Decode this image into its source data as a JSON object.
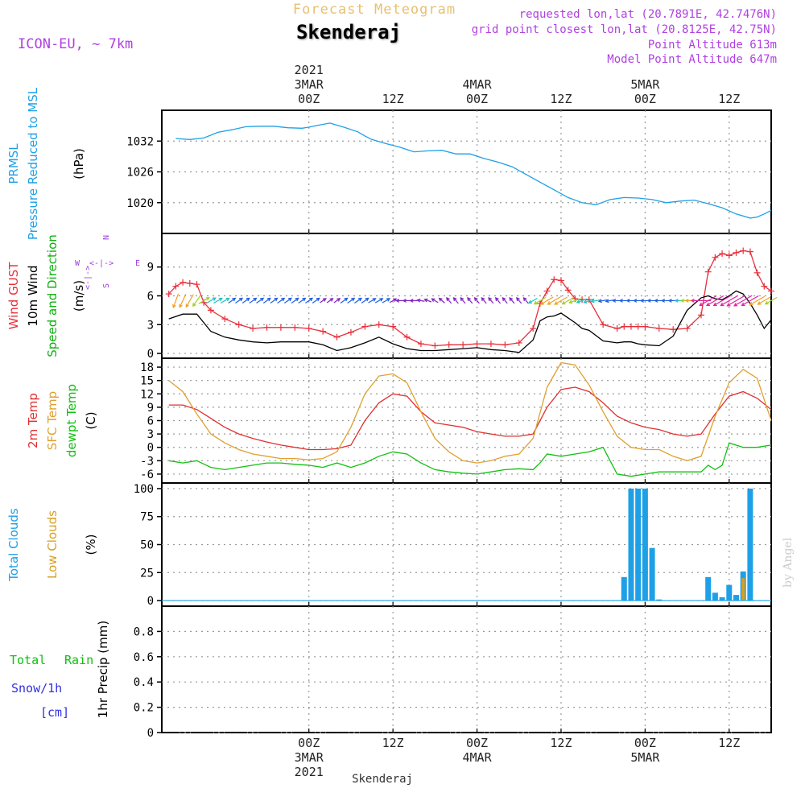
{
  "header": {
    "title": "Forecast Meteogram",
    "location": "Skenderaj",
    "model": "ICON-EU, ~ 7km",
    "requested": "requested lon,lat (20.7891E, 42.7476N)",
    "grid_point": "grid point closest lon,lat (20.8125E, 42.75N)",
    "point_altitude": "Point Altitude 613m",
    "model_altitude": "Model Point Altitude 647m",
    "footer_location": "Skenderaj",
    "watermark": "by Angel"
  },
  "time_axis": {
    "top_labels": [
      {
        "line1": "2021",
        "line2": "3MAR",
        "line3": "00Z",
        "hour": 0
      },
      {
        "line1": "",
        "line2": "",
        "line3": "12Z",
        "hour": 12
      },
      {
        "line1": "",
        "line2": "4MAR",
        "line3": "00Z",
        "hour": 24
      },
      {
        "line1": "",
        "line2": "",
        "line3": "12Z",
        "hour": 36
      },
      {
        "line1": "",
        "line2": "5MAR",
        "line3": "00Z",
        "hour": 48
      },
      {
        "line1": "",
        "line2": "",
        "line3": "12Z",
        "hour": 60
      }
    ],
    "bottom_labels": [
      {
        "line1": "00Z",
        "line2": "3MAR",
        "line3": "2021",
        "hour": 0
      },
      {
        "line1": "12Z",
        "line2": "",
        "line3": "",
        "hour": 12
      },
      {
        "line1": "00Z",
        "line2": "4MAR",
        "line3": "",
        "hour": 24
      },
      {
        "line1": "12Z",
        "line2": "",
        "line3": "",
        "hour": 36
      },
      {
        "line1": "00Z",
        "line2": "5MAR",
        "line3": "",
        "hour": 48
      },
      {
        "line1": "12Z",
        "line2": "",
        "line3": "",
        "hour": 60
      }
    ]
  },
  "colors": {
    "pressure": "#1ea0e6",
    "gust": "#e8303c",
    "wind10m": "#000000",
    "direction_label": "#10b010",
    "temp2m": "#e03030",
    "sfc_temp": "#e0a030",
    "dewpt": "#10c010",
    "total_clouds": "#1ea0e6",
    "low_clouds": "#d8a020",
    "rain": "#10c010",
    "snow": "#3030e0",
    "compass": "#a040e0",
    "header_purple": "#b040e0",
    "title_gold": "#e8c070"
  },
  "chart_data": [
    {
      "type": "line",
      "panel": "pressure",
      "ylabel": [
        "PRMSL",
        "Pressure Reduced to MSL",
        "(hPa)"
      ],
      "ylim": [
        1014,
        1038
      ],
      "yticks": [
        1020,
        1026,
        1032
      ],
      "series": [
        {
          "name": "PRMSL",
          "x": [
            -19,
            -17,
            -15,
            -13,
            -11,
            -9,
            -7,
            -5,
            -3,
            -1,
            0,
            1,
            3,
            5,
            7,
            8,
            9,
            11,
            13,
            15,
            17,
            19,
            21,
            23,
            25,
            27,
            29,
            31,
            33,
            35,
            37,
            39,
            41,
            43,
            45,
            47,
            49,
            51,
            53,
            55,
            57,
            59,
            61,
            63,
            64,
            65,
            66
          ],
          "values": [
            1032.5,
            1032.3,
            1032.6,
            1033.7,
            1034.2,
            1034.8,
            1034.9,
            1034.9,
            1034.6,
            1034.5,
            1034.7,
            1035.0,
            1035.5,
            1034.7,
            1033.8,
            1033.0,
            1032.3,
            1031.5,
            1030.8,
            1029.9,
            1030.1,
            1030.2,
            1029.5,
            1029.5,
            1028.6,
            1027.9,
            1027.0,
            1025.5,
            1024.0,
            1022.5,
            1021.0,
            1020.0,
            1019.6,
            1020.6,
            1021.0,
            1020.9,
            1020.6,
            1020.0,
            1020.3,
            1020.5,
            1019.8,
            1019.0,
            1017.8,
            1017.0,
            1017.2,
            1017.8,
            1018.5
          ]
        }
      ]
    },
    {
      "type": "line",
      "panel": "wind",
      "ylabel": [
        "Wind GUST",
        "10m Wind",
        "Speed and Direction",
        "(m/s)"
      ],
      "ylim": [
        -0.5,
        12.5
      ],
      "yticks": [
        0,
        3,
        6,
        9
      ],
      "compass": [
        "N",
        "S",
        "W",
        "E"
      ],
      "series": [
        {
          "name": "Wind GUST",
          "x": [
            -20,
            -19,
            -18,
            -17,
            -16,
            -15,
            -14,
            -12,
            -10,
            -8,
            -6,
            -4,
            -2,
            0,
            2,
            4,
            6,
            8,
            10,
            12,
            14,
            16,
            18,
            20,
            22,
            24,
            26,
            28,
            30,
            32,
            33,
            34,
            35,
            36,
            37,
            38,
            39,
            40,
            42,
            44,
            45,
            46,
            47,
            48,
            50,
            52,
            54,
            56,
            57,
            58,
            59,
            60,
            61,
            62,
            63,
            64,
            65,
            66
          ],
          "values": [
            6.2,
            7.0,
            7.4,
            7.3,
            7.2,
            5.3,
            4.5,
            3.6,
            3.0,
            2.6,
            2.7,
            2.7,
            2.7,
            2.6,
            2.3,
            1.7,
            2.2,
            2.8,
            3.0,
            2.8,
            1.7,
            1.0,
            0.8,
            0.9,
            0.9,
            1.0,
            1.0,
            0.9,
            1.1,
            2.6,
            5.2,
            6.5,
            7.7,
            7.6,
            6.6,
            5.7,
            5.6,
            5.6,
            3.0,
            2.6,
            2.8,
            2.8,
            2.8,
            2.8,
            2.6,
            2.5,
            2.6,
            4.0,
            8.5,
            10.0,
            10.4,
            10.2,
            10.5,
            10.7,
            10.6,
            8.4,
            7.0,
            6.5
          ]
        },
        {
          "name": "10m Wind",
          "x": [
            -20,
            -18,
            -16,
            -15,
            -14,
            -12,
            -10,
            -8,
            -6,
            -4,
            -2,
            0,
            2,
            4,
            6,
            8,
            10,
            12,
            14,
            16,
            18,
            20,
            22,
            24,
            26,
            28,
            30,
            32,
            33,
            34,
            35,
            36,
            37,
            38,
            39,
            40,
            42,
            44,
            45,
            46,
            47,
            48,
            50,
            52,
            54,
            56,
            57,
            58,
            59,
            60,
            61,
            62,
            63,
            64,
            65,
            66
          ],
          "values": [
            3.6,
            4.1,
            4.1,
            3.2,
            2.3,
            1.7,
            1.4,
            1.2,
            1.1,
            1.2,
            1.2,
            1.2,
            0.9,
            0.3,
            0.6,
            1.1,
            1.7,
            1.0,
            0.5,
            0.3,
            0.3,
            0.4,
            0.5,
            0.6,
            0.4,
            0.3,
            0.1,
            1.4,
            3.4,
            3.8,
            3.9,
            4.2,
            3.7,
            3.2,
            2.6,
            2.4,
            1.3,
            1.1,
            1.2,
            1.2,
            1.0,
            0.9,
            0.8,
            1.8,
            4.5,
            5.8,
            6.0,
            5.7,
            5.6,
            6.0,
            6.5,
            6.2,
            5.2,
            4.0,
            2.6,
            3.5
          ]
        }
      ]
    },
    {
      "type": "line",
      "panel": "temperature",
      "ylabel": [
        "2m Temp",
        "SFC Temp",
        "dewpt Temp",
        "(C)"
      ],
      "ylim": [
        -8,
        20
      ],
      "yticks": [
        -6,
        -3,
        0,
        3,
        6,
        9,
        12,
        15,
        18
      ],
      "series": [
        {
          "name": "2m Temp",
          "x": [
            -20,
            -18,
            -16,
            -14,
            -12,
            -10,
            -8,
            -6,
            -4,
            -2,
            0,
            2,
            4,
            6,
            8,
            10,
            12,
            14,
            16,
            18,
            20,
            22,
            24,
            26,
            28,
            30,
            32,
            34,
            36,
            38,
            40,
            42,
            44,
            46,
            48,
            50,
            52,
            54,
            56,
            58,
            60,
            62,
            64,
            66
          ],
          "values": [
            9.5,
            9.5,
            8.5,
            6.5,
            4.5,
            3.0,
            2.0,
            1.2,
            0.5,
            0.0,
            -0.5,
            -0.5,
            -0.3,
            0.5,
            6.0,
            10.0,
            12.0,
            11.5,
            8.0,
            5.5,
            5.0,
            4.5,
            3.5,
            3.0,
            2.5,
            2.5,
            3.0,
            9.0,
            13.0,
            13.5,
            12.5,
            10.0,
            7.0,
            5.5,
            4.5,
            4.0,
            3.0,
            2.5,
            3.0,
            7.5,
            11.5,
            12.5,
            11.0,
            8.5
          ]
        },
        {
          "name": "SFC Temp",
          "x": [
            -20,
            -18,
            -16,
            -14,
            -12,
            -10,
            -8,
            -6,
            -4,
            -2,
            0,
            2,
            4,
            6,
            8,
            10,
            12,
            14,
            16,
            18,
            20,
            22,
            24,
            26,
            28,
            30,
            32,
            34,
            36,
            38,
            40,
            42,
            44,
            46,
            48,
            50,
            52,
            54,
            56,
            58,
            60,
            62,
            64,
            66
          ],
          "values": [
            15.0,
            12.5,
            7.5,
            3.0,
            1.0,
            -0.5,
            -1.5,
            -2.0,
            -2.5,
            -2.5,
            -2.8,
            -2.5,
            -1.0,
            4.5,
            12.0,
            16.0,
            16.5,
            14.5,
            8.0,
            2.0,
            -1.0,
            -3.0,
            -3.5,
            -3.0,
            -2.0,
            -1.5,
            2.0,
            13.5,
            19.0,
            18.5,
            14.0,
            8.0,
            2.5,
            0.0,
            -0.5,
            -0.5,
            -2.0,
            -3.0,
            -2.0,
            7.0,
            14.5,
            17.5,
            15.5,
            6.0
          ]
        },
        {
          "name": "dewpt Temp",
          "x": [
            -20,
            -18,
            -16,
            -14,
            -12,
            -10,
            -8,
            -6,
            -4,
            -2,
            0,
            2,
            4,
            6,
            8,
            10,
            12,
            14,
            16,
            18,
            20,
            22,
            24,
            26,
            28,
            30,
            32,
            33,
            34,
            36,
            38,
            40,
            42,
            43,
            44,
            46,
            48,
            50,
            52,
            54,
            56,
            57,
            58,
            59,
            60,
            62,
            64,
            66
          ],
          "values": [
            -3.0,
            -3.5,
            -3.0,
            -4.5,
            -5.0,
            -4.5,
            -4.0,
            -3.5,
            -3.5,
            -3.8,
            -4.0,
            -4.5,
            -3.5,
            -4.5,
            -3.5,
            -2.0,
            -1.0,
            -1.5,
            -3.5,
            -5.0,
            -5.5,
            -5.8,
            -6.0,
            -5.5,
            -5.0,
            -4.8,
            -5.0,
            -3.5,
            -1.5,
            -2.0,
            -1.5,
            -1.0,
            0.0,
            -3.0,
            -6.0,
            -6.5,
            -6.0,
            -5.5,
            -5.5,
            -5.5,
            -5.5,
            -4.0,
            -5.0,
            -4.0,
            1.0,
            0.0,
            0.0,
            0.5
          ]
        }
      ]
    },
    {
      "type": "bar",
      "panel": "clouds",
      "ylabel": [
        "Total Clouds",
        "Low Clouds",
        "(%)"
      ],
      "ylim": [
        -5,
        105
      ],
      "yticks": [
        0,
        25,
        50,
        75,
        100
      ],
      "series": [
        {
          "name": "Total Clouds",
          "x": [
            45,
            46,
            47,
            48,
            49,
            50,
            51,
            57,
            58,
            59,
            60,
            61,
            62,
            63,
            64,
            65
          ],
          "values": [
            21,
            100,
            100,
            100,
            47,
            1,
            0,
            21,
            7,
            3,
            14,
            5,
            26,
            100,
            0,
            0
          ]
        },
        {
          "name": "Low Clouds",
          "x": [
            62
          ],
          "values": [
            20
          ]
        }
      ]
    },
    {
      "type": "bar",
      "panel": "precip",
      "ylabel": [
        "1hr Precip (mm)"
      ],
      "legend": [
        "Total",
        "Rain",
        "Snow/1h",
        "[cm]"
      ],
      "ylim": [
        0,
        1.0
      ],
      "yticks": [
        0,
        0.2,
        0.4,
        0.6,
        0.8
      ],
      "series": [
        {
          "name": "Total Rain",
          "x": [],
          "values": []
        }
      ]
    }
  ],
  "wind_barbs": {
    "x": [
      -19,
      -18,
      -17,
      -16,
      -15,
      -14,
      -13,
      -12,
      -11,
      -10,
      -9,
      -8,
      -7,
      -6,
      -5,
      -4,
      -3,
      -2,
      -1,
      0,
      1,
      2,
      3,
      4,
      5,
      6,
      7,
      8,
      9,
      10,
      11,
      12,
      13,
      14,
      15,
      16,
      17,
      18,
      19,
      20,
      21,
      22,
      23,
      24,
      25,
      26,
      27,
      28,
      29,
      30,
      31,
      32,
      33,
      34,
      35,
      36,
      37,
      38,
      39,
      40,
      41,
      42,
      43,
      44,
      45,
      46,
      47,
      48,
      49,
      50,
      51,
      52,
      53,
      54,
      55,
      56,
      57,
      58,
      59,
      60,
      61,
      62,
      63,
      64,
      65,
      66
    ],
    "dir_deg": [
      200,
      205,
      210,
      215,
      60,
      60,
      60,
      60,
      55,
      55,
      55,
      55,
      55,
      55,
      55,
      55,
      55,
      55,
      55,
      55,
      55,
      55,
      55,
      55,
      55,
      55,
      55,
      55,
      60,
      60,
      60,
      60,
      270,
      270,
      270,
      280,
      290,
      300,
      310,
      320,
      320,
      320,
      320,
      320,
      320,
      320,
      320,
      320,
      320,
      320,
      320,
      240,
      240,
      240,
      240,
      240,
      240,
      250,
      250,
      250,
      260,
      260,
      260,
      270,
      270,
      270,
      270,
      270,
      270,
      270,
      270,
      270,
      270,
      270,
      270,
      270,
      240,
      240,
      240,
      240,
      240,
      240,
      240,
      240,
      240,
      240
    ],
    "speed": [
      4,
      4,
      4,
      3.5,
      3,
      2.5,
      2,
      2,
      1.5,
      1.5,
      1.5,
      1.5,
      1.5,
      1.5,
      1.5,
      1.5,
      1.5,
      1.5,
      1.5,
      1.5,
      1.5,
      1,
      1,
      1,
      1.5,
      1.5,
      1.5,
      1.5,
      1.5,
      1.5,
      1.5,
      1,
      1,
      1,
      1,
      1,
      1,
      1,
      1,
      1,
      1,
      1,
      1,
      1,
      1,
      1,
      1,
      1,
      1,
      1,
      1,
      2,
      3.5,
      4,
      4,
      4,
      3.5,
      3,
      2.5,
      2.5,
      2,
      1.5,
      1.5,
      1.5,
      1.5,
      1.5,
      1.5,
      1.5,
      1.5,
      1.5,
      1.5,
      1.5,
      2,
      3,
      5,
      6,
      6,
      6,
      6,
      6,
      6.5,
      6.5,
      6,
      5,
      4,
      3.5
    ]
  }
}
